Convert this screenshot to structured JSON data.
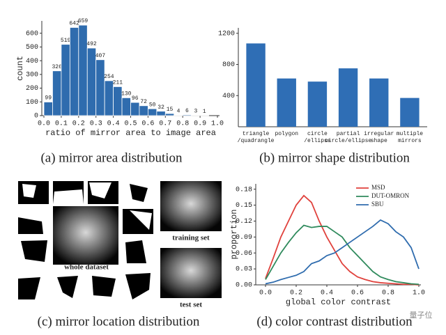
{
  "chart_data": [
    {
      "type": "histogram",
      "caption": "(a) mirror area distribution",
      "x_label": "ratio of mirror area to image area",
      "y_label": "count",
      "bins": [
        0,
        0.05,
        0.1,
        0.15,
        0.2,
        0.25,
        0.3,
        0.35,
        0.4,
        0.45,
        0.5,
        0.55,
        0.6,
        0.65,
        0.7,
        0.75,
        0.8,
        0.85,
        0.9,
        0.95
      ],
      "values": [
        99,
        326,
        519,
        642,
        659,
        492,
        407,
        254,
        211,
        130,
        96,
        72,
        50,
        32,
        15,
        4,
        6,
        3,
        1
      ],
      "color": "#2f6cae",
      "xlim": [
        0,
        1
      ],
      "ylim": [
        0,
        690
      ],
      "xticks": [
        {
          "value": 0,
          "label": "0.0"
        },
        0.1,
        0.2,
        0.3,
        0.4,
        0.5,
        0.6,
        0.7,
        0.8,
        0.9,
        {
          "value": 1,
          "label": "1.0"
        }
      ],
      "yticks": [
        0,
        100,
        200,
        300,
        400,
        500,
        600
      ]
    },
    {
      "type": "bar",
      "caption": "(b) mirror shape distribution",
      "categories": [
        "triangle\n/quadrangle",
        "polygon",
        "circle\n/ellipse",
        "partial\ncircle/ellipse",
        "irregular\nshape",
        "multiple\nmirrors"
      ],
      "values": [
        1070,
        620,
        580,
        750,
        620,
        370
      ],
      "color": "#2f6eb5",
      "ylim": [
        0,
        1270
      ],
      "yticks": [
        400,
        800,
        1200
      ]
    },
    {
      "type": "line",
      "caption": "(d) color contrast distribution",
      "x_label": "global color contrast",
      "y_label": "proportion",
      "x": [
        0,
        0.05,
        0.1,
        0.15,
        0.2,
        0.25,
        0.3,
        0.35,
        0.4,
        0.45,
        0.5,
        0.55,
        0.6,
        0.65,
        0.7,
        0.75,
        0.8,
        0.85,
        0.9,
        0.95,
        1
      ],
      "series": [
        {
          "name": "MSD",
          "color": "#e0413c",
          "values": [
            0.012,
            0.05,
            0.09,
            0.12,
            0.15,
            0.168,
            0.155,
            0.12,
            0.09,
            0.065,
            0.04,
            0.025,
            0.015,
            0.01,
            0.006,
            0.004,
            0.003,
            0.002,
            0.001,
            0.001,
            0
          ]
        },
        {
          "name": "DUT-OMRON",
          "color": "#2f8a5c",
          "values": [
            0.01,
            0.035,
            0.06,
            0.08,
            0.098,
            0.112,
            0.108,
            0.11,
            0.11,
            0.1,
            0.09,
            0.07,
            0.055,
            0.04,
            0.025,
            0.015,
            0.01,
            0.006,
            0.004,
            0.002,
            0.001
          ]
        },
        {
          "name": "SBU",
          "color": "#2f6cae",
          "values": [
            0.002,
            0.005,
            0.01,
            0.014,
            0.018,
            0.025,
            0.04,
            0.045,
            0.055,
            0.06,
            0.07,
            0.08,
            0.09,
            0.1,
            0.11,
            0.122,
            0.115,
            0.1,
            0.09,
            0.07,
            0.03
          ]
        }
      ],
      "xlim": [
        -0.05,
        1
      ],
      "ylim": [
        0,
        0.19
      ],
      "legend": "upper right",
      "xticks": [
        {
          "value": 0,
          "label": "0.0"
        },
        0.2,
        0.4,
        0.6,
        0.8,
        {
          "value": 1,
          "label": "1.0"
        }
      ],
      "yticks": [
        {
          "value": 0,
          "label": "0.00"
        },
        0.03,
        0.06,
        0.09,
        0.12,
        0.15,
        0.18
      ]
    }
  ],
  "location_figure": {
    "caption": "(c) mirror location distribution",
    "whole": "whole dataset",
    "training": "training set",
    "test": "test set"
  },
  "watermark": "量子位"
}
